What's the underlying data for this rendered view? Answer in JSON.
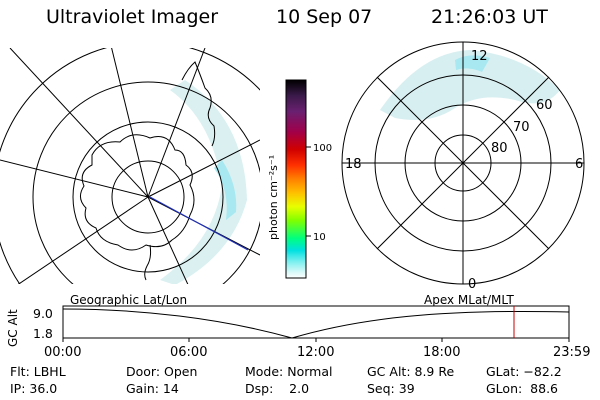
{
  "header": {
    "instrument": "Ultraviolet Imager",
    "date": "10 Sep 07",
    "time": "21:26:03 UT"
  },
  "colorbar": {
    "unit_label": "photon cm⁻²s⁻¹",
    "tick_100": "100",
    "tick_10": "10",
    "colors": [
      "#000000",
      "#3b1a4a",
      "#6a2070",
      "#a0004a",
      "#d00000",
      "#ff3000",
      "#ff8000",
      "#ffc000",
      "#e8ff00",
      "#80ff00",
      "#00ff80",
      "#00e0e0",
      "#80f0f0",
      "#d8f8f8",
      "#ffffff"
    ]
  },
  "mlt_plot": {
    "label_12": "12",
    "label_6": "6",
    "label_18": "18",
    "label_0": "0",
    "lat_60": "60",
    "lat_70": "70",
    "lat_80": "80"
  },
  "bottom_panel": {
    "left_caption": "Geographic Lat/Lon",
    "right_caption": "Apex MLat/MLT",
    "axis_label": "GC Alt",
    "y_top": "9.0",
    "y_bottom": "1.8",
    "x_ticks": [
      "00:00",
      "06:00",
      "12:00",
      "18:00",
      "23:59"
    ],
    "current_time_marker_color": "#cc0000"
  },
  "status": {
    "flt": "Flt: LBHL",
    "ip": "IP: 36.0",
    "door": "Door: Open",
    "gain": "Gain: 14",
    "mode": "Mode: Normal",
    "dsp": "Dsp:    2.0",
    "gc_alt": "GC Alt: 8.9 Re",
    "seq": "Seq: 39",
    "glat": "GLat: −82.2",
    "glon": "GLon:  88.6"
  }
}
